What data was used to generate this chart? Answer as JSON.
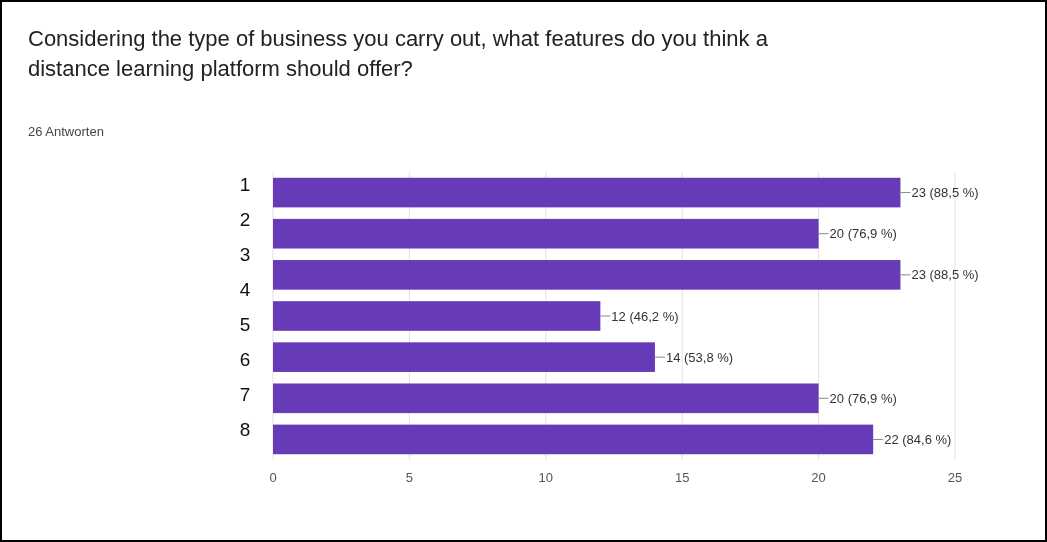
{
  "chart_data": {
    "type": "bar",
    "orientation": "horizontal",
    "title": "Considering the type of business you carry out, what features do you think a distance learning platform should offer?",
    "subtitle": "26 Antworten",
    "categories": [
      null,
      null,
      null,
      null,
      null,
      null,
      null
    ],
    "annotations": [
      "1",
      "2",
      "3",
      "4",
      "5",
      "6",
      "7",
      "8"
    ],
    "values": [
      23,
      20,
      23,
      12,
      14,
      20,
      22
    ],
    "value_labels": [
      "23 (88,5 %)",
      "20 (76,9 %)",
      "23 (88,5 %)",
      "12 (46,2 %)",
      "14 (53,8 %)",
      "20 (76,9 %)",
      "22 (84,6 %)"
    ],
    "color": "#673ab7",
    "xlim": [
      0,
      25
    ],
    "xticks": [
      0,
      5,
      10,
      15,
      20,
      25
    ],
    "grid": "x"
  }
}
